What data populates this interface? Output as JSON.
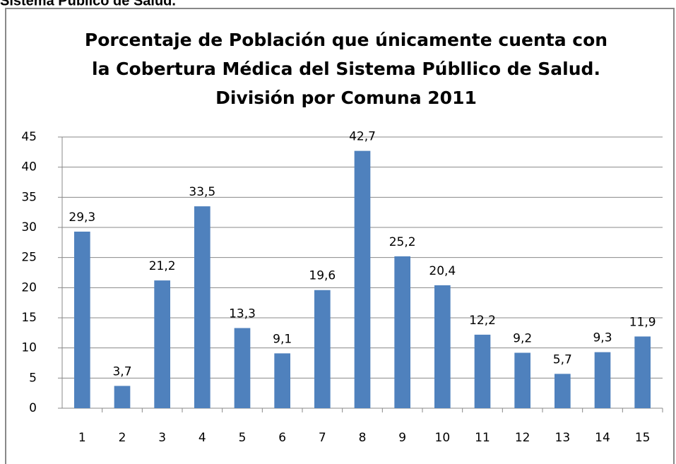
{
  "header": "Sistema Público de Salud.",
  "chart_data": {
    "type": "bar",
    "title": [
      "Porcentaje de Población que únicamente cuenta con",
      "la Cobertura Médica del Sistema Públlico de Salud.",
      "División por Comuna 2011"
    ],
    "categories": [
      "1",
      "2",
      "3",
      "4",
      "5",
      "6",
      "7",
      "8",
      "9",
      "10",
      "11",
      "12",
      "13",
      "14",
      "15"
    ],
    "values": [
      29.3,
      3.7,
      21.2,
      33.5,
      13.3,
      9.1,
      19.6,
      42.7,
      25.2,
      20.4,
      12.2,
      9.2,
      5.7,
      9.3,
      11.9
    ],
    "value_labels": [
      "29,3",
      "3,7",
      "21,2",
      "33,5",
      "13,3",
      "9,1",
      "19,6",
      "42,7",
      "25,2",
      "20,4",
      "12,2",
      "9,2",
      "5,7",
      "9,3",
      "11,9"
    ],
    "color": "#4f81bd",
    "ylim": [
      0,
      45
    ],
    "yticks": [
      0,
      5,
      10,
      15,
      20,
      25,
      30,
      35,
      40,
      45
    ],
    "grid": true
  }
}
